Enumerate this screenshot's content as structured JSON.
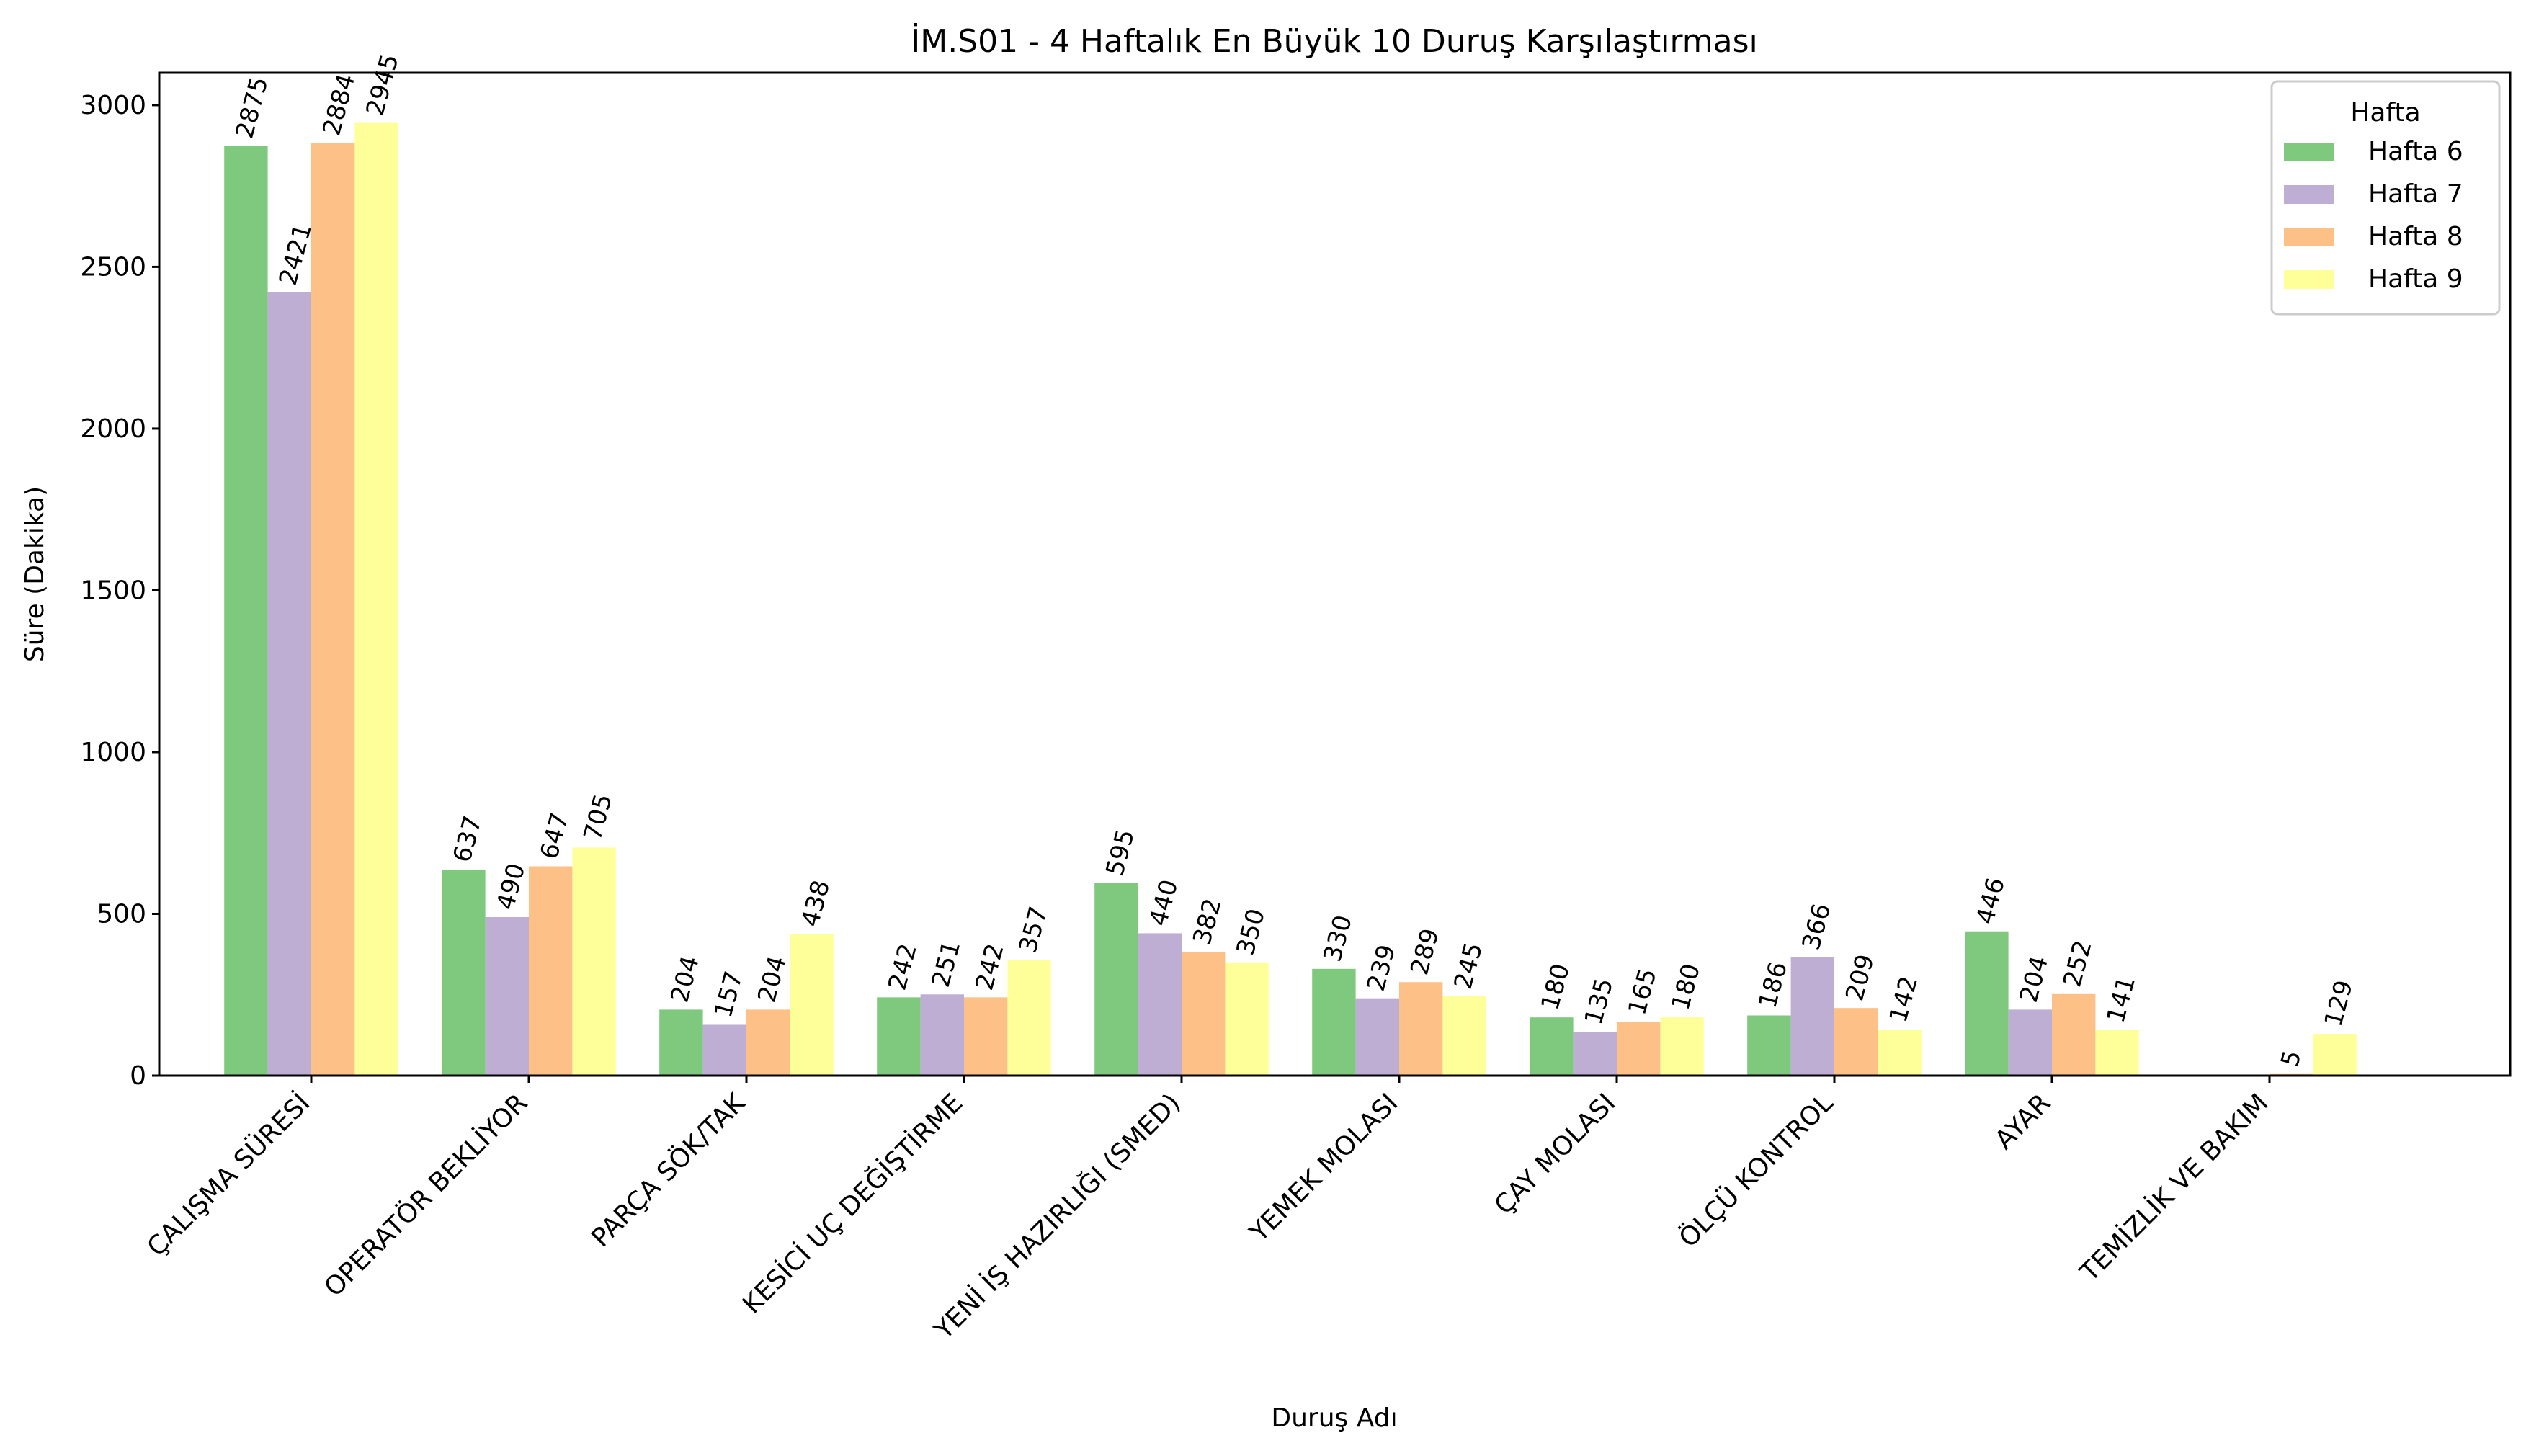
{
  "chart_data": {
    "type": "bar",
    "title": "İM.S01 - 4 Haftalık En Büyük 10 Duruş Karşılaştırması",
    "xlabel": "Duruş Adı",
    "ylabel": "Süre (Dakika)",
    "ylim": [
      0,
      3100
    ],
    "yticks": [
      0,
      500,
      1000,
      1500,
      2000,
      2500,
      3000
    ],
    "grid": false,
    "legend": {
      "title": "Hafta",
      "placement": "top-right"
    },
    "categories": [
      "ÇALIŞMA SÜRESİ",
      "OPERATÖR BEKLİYOR",
      "PARÇA SÖK/TAK",
      "KESİCİ UÇ DEĞİŞTİRME",
      "YENİ İŞ HAZIRLIĞI (SMED)",
      "YEMEK MOLASI",
      "ÇAY MOLASI",
      "ÖLÇÜ KONTROL",
      "AYAR",
      "TEMİZLİK VE BAKIM"
    ],
    "series": [
      {
        "name": "Hafta 6",
        "color": "#7fc97f",
        "values": [
          2875,
          637,
          204,
          242,
          595,
          330,
          180,
          186,
          446,
          null
        ]
      },
      {
        "name": "Hafta 7",
        "color": "#beaed4",
        "values": [
          2421,
          490,
          157,
          251,
          440,
          239,
          135,
          366,
          204,
          null
        ]
      },
      {
        "name": "Hafta 8",
        "color": "#fdc086",
        "values": [
          2884,
          647,
          204,
          242,
          382,
          289,
          165,
          209,
          252,
          5
        ]
      },
      {
        "name": "Hafta 9",
        "color": "#ffff99",
        "values": [
          2945,
          705,
          438,
          357,
          350,
          245,
          180,
          142,
          141,
          129
        ]
      }
    ]
  }
}
